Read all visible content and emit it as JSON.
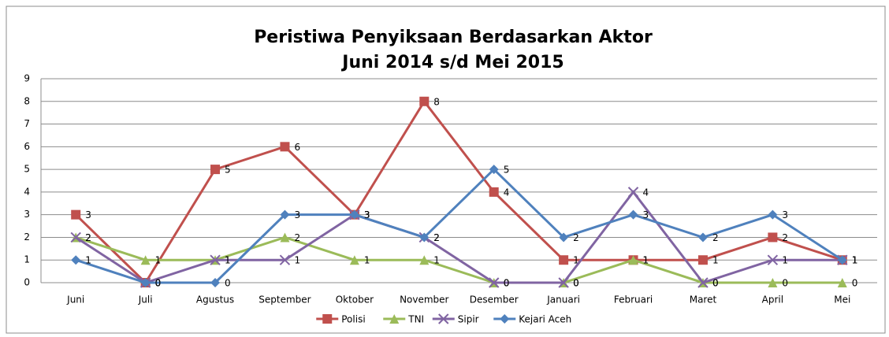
{
  "chart_data": {
    "type": "line",
    "title": [
      "Peristiwa Penyiksaan Berdasarkan Aktor",
      "Juni 2014 s/d Mei 2015"
    ],
    "categories": [
      "Juni",
      "Juli",
      "Agustus",
      "September",
      "Oktober",
      "November",
      "Desember",
      "Januari",
      "Februari",
      "Maret",
      "April",
      "Mei"
    ],
    "series": [
      {
        "name": "Polisi",
        "color": "#c0504d",
        "marker": "square",
        "values": [
          3,
          0,
          5,
          6,
          3,
          8,
          4,
          1,
          1,
          1,
          2,
          1
        ]
      },
      {
        "name": "TNI",
        "color": "#9bbb59",
        "marker": "triangle",
        "values": [
          2,
          1,
          1,
          2,
          1,
          1,
          0,
          0,
          1,
          0,
          0,
          0
        ]
      },
      {
        "name": "Sipir",
        "color": "#8064a2",
        "marker": "x",
        "values": [
          2,
          0,
          1,
          1,
          3,
          2,
          0,
          0,
          4,
          0,
          1,
          1
        ]
      },
      {
        "name": "Kejari Aceh",
        "color": "#4f81bd",
        "marker": "diamond",
        "values": [
          1,
          0,
          0,
          3,
          3,
          2,
          5,
          2,
          3,
          2,
          3,
          1
        ]
      }
    ],
    "ylim": [
      0,
      9
    ],
    "yticks": [
      0,
      1,
      2,
      3,
      4,
      5,
      6,
      7,
      8,
      9
    ],
    "grid": true,
    "legend": "bottom"
  }
}
